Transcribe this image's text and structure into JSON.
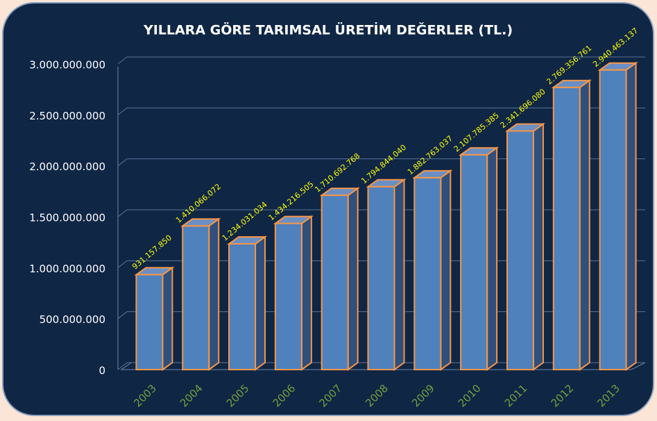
{
  "chart_data": {
    "type": "bar",
    "title": "YILLARA GÖRE TARIMSAL ÜRETİM DEĞERLER (TL.)",
    "categories": [
      "2003",
      "2004",
      "2005",
      "2006",
      "2007",
      "2008",
      "2009",
      "2010",
      "2011",
      "2012",
      "2013"
    ],
    "values": [
      931157850,
      1410066072,
      1234031034,
      1434216505,
      1710692768,
      1794844040,
      1882763037,
      2107785385,
      2341696080,
      2769356761,
      2940463137
    ],
    "value_labels": [
      "931.157.850",
      "1.410.066.072",
      "1.234.031.034",
      "1.434.216.505",
      "1.710.692.768",
      "1.794.844.040",
      "1.882.763.037",
      "2.107.785.385",
      "2.341.696.080",
      "2.769.356.761",
      "2.940.463.137"
    ],
    "color": "#4f81bd",
    "ylim": [
      0,
      3000000000
    ],
    "yticks": [
      0,
      {
        "value": 500000000,
        "label": "500.000.000"
      },
      {
        "value": 1000000000,
        "label": "1.000.000.000"
      },
      {
        "value": 1500000000,
        "label": "1.500.000.000"
      },
      {
        "value": 2000000000,
        "label": "2.000.000.000"
      },
      {
        "value": 2500000000,
        "label": "2.500.000.000"
      },
      {
        "value": 3000000000,
        "label": "3.000.000.000"
      }
    ],
    "grid": true
  }
}
